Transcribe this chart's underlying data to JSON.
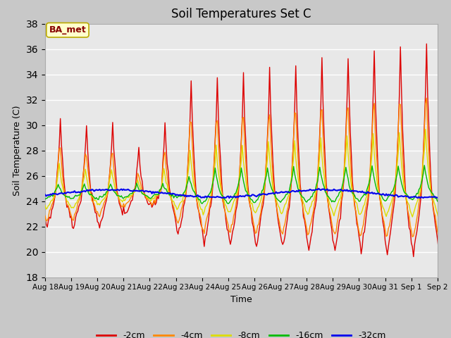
{
  "title": "Soil Temperatures Set C",
  "xlabel": "Time",
  "ylabel": "Soil Temperature (C)",
  "ylim": [
    18,
    38
  ],
  "yticks": [
    18,
    20,
    22,
    24,
    26,
    28,
    30,
    32,
    34,
    36,
    38
  ],
  "colors": {
    "-2cm": "#dd0000",
    "-4cm": "#ff8800",
    "-8cm": "#dddd00",
    "-16cm": "#00bb00",
    "-32cm": "#0000ee"
  },
  "legend_labels": [
    "-2cm",
    "-4cm",
    "-8cm",
    "-16cm",
    "-32cm"
  ],
  "annotation_text": "BA_met",
  "annotation_color": "#880000",
  "annotation_bg": "#ffffcc",
  "plot_bg_color": "#e8e8e8",
  "fig_bg_color": "#c8c8c8",
  "grid_color": "#ffffff",
  "title_fontsize": 12
}
